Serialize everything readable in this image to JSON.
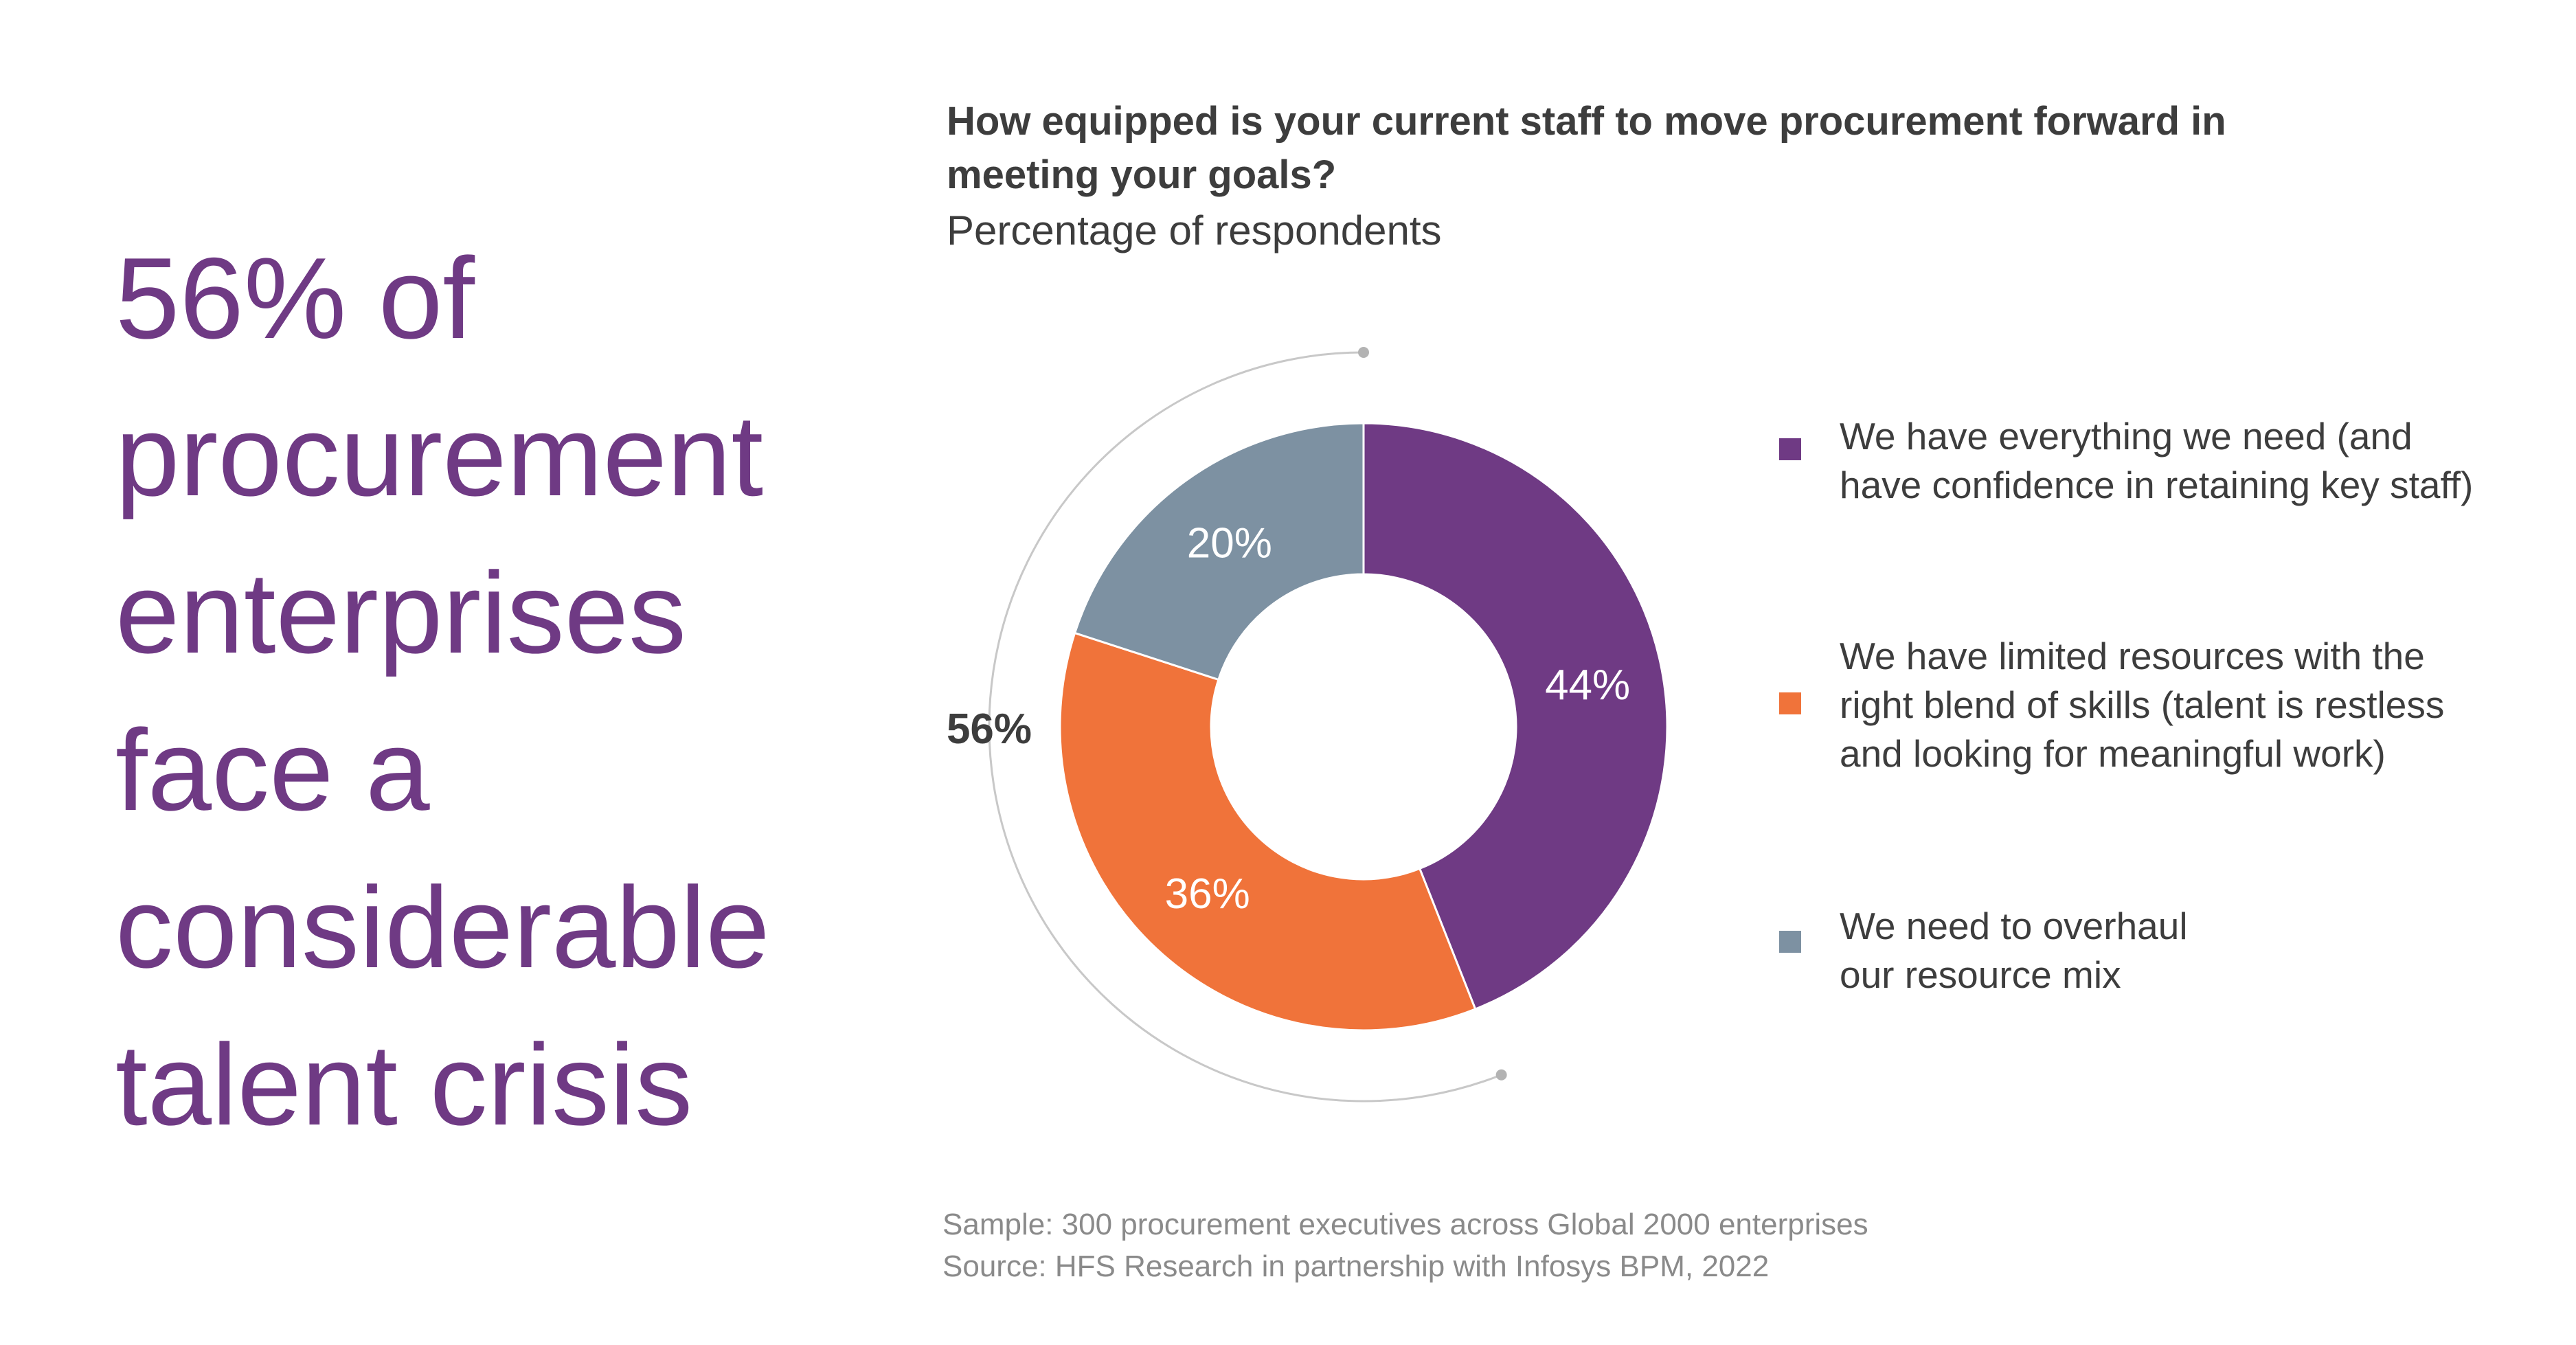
{
  "headline": {
    "lines": [
      "56% of",
      "procurement",
      "enterprises",
      "face a",
      "considerable",
      "talent crisis"
    ]
  },
  "chart_data": {
    "type": "pie",
    "variant": "donut",
    "title_lines": [
      "How equipped is your current staff to move procurement forward in",
      "meeting your goals?"
    ],
    "subtitle": "Percentage of respondents",
    "unit": "%",
    "categories": [
      "We have everything we need (and have confidence in retaining key staff)",
      "We have limited resources with the right blend of skills (talent is restless and looking for meaningful work)",
      "We need to overhaul our resource mix"
    ],
    "values": [
      44,
      36,
      20
    ],
    "data_labels": [
      "44%",
      "36%",
      "20%"
    ],
    "colors": [
      "#6f3a84",
      "#f0733a",
      "#7d91a2"
    ],
    "bracket_annotation": {
      "label": "56%",
      "covers": [
        "We have limited resources with the right blend of skills (talent is restless and looking for meaningful work)",
        "We need to overhaul our resource mix"
      ],
      "value": 56
    },
    "legend": {
      "placement": "right",
      "entries": [
        {
          "lines": [
            "We have everything we need (and",
            "have confidence in retaining key staff)"
          ],
          "color": "#6f3a84"
        },
        {
          "lines": [
            "We have limited resources with the",
            "right blend of skills (talent is restless",
            "and looking for meaningful work)"
          ],
          "color": "#f0733a"
        },
        {
          "lines": [
            "We need to overhaul",
            "our resource mix"
          ],
          "color": "#7d91a2"
        }
      ]
    }
  },
  "footnote": {
    "sample": "Sample: 300 procurement executives across Global 2000 enterprises",
    "source": "Source: HFS Research in partnership with Infosys BPM, 2022"
  }
}
